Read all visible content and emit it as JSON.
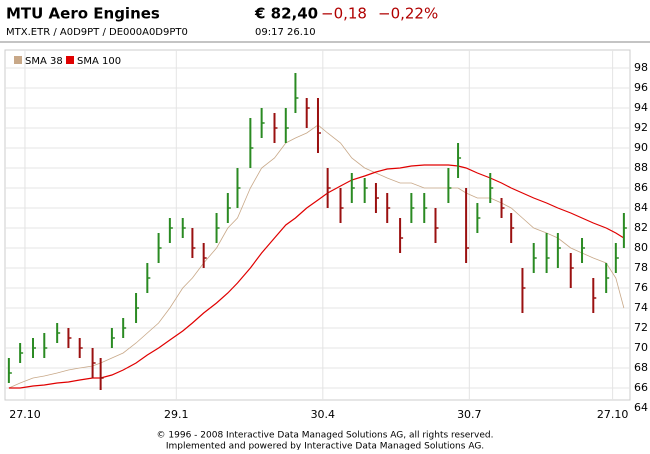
{
  "header": {
    "title": "MTU Aero Engines",
    "price": "€ 82,40",
    "change": "−0,18",
    "change_pct": "−0,22%",
    "ids": "MTX.ETR   /   A0D9PT   /   DE000A0D9PT0",
    "time": "09:17   26.10"
  },
  "chart_data": {
    "type": "ohlc",
    "x": [
      -10,
      -3,
      5,
      12,
      20,
      27,
      34,
      42,
      47,
      54,
      61,
      69,
      76,
      83,
      90,
      98,
      104,
      111,
      119,
      126,
      132,
      140,
      147,
      155,
      162,
      168,
      175,
      182,
      188,
      196,
      203,
      211,
      218,
      225,
      233,
      240,
      248,
      255,
      263,
      269,
      274,
      281,
      289,
      296,
      302,
      309,
      316,
      324,
      331,
      339,
      346,
      353,
      361,
      367,
      372
    ],
    "high": [
      69,
      70.5,
      71,
      71.5,
      72.5,
      72,
      71,
      70,
      69,
      72,
      73,
      75.5,
      78.5,
      81.5,
      83,
      83,
      82,
      80.5,
      83.5,
      85.5,
      88,
      93,
      94,
      93.5,
      94,
      97.5,
      95,
      95,
      88,
      86,
      87.5,
      87,
      86.5,
      85.5,
      83,
      85.5,
      85.5,
      84,
      88,
      90.5,
      86,
      84.5,
      87.5,
      85,
      83.5,
      78,
      80.5,
      81.5,
      81.5,
      79.5,
      81,
      77,
      78.5,
      80.5,
      83.5
    ],
    "low": [
      66.5,
      68.5,
      69,
      69,
      70.5,
      70,
      69,
      67,
      65.8,
      70,
      71,
      72.5,
      75.5,
      78.5,
      80.5,
      81,
      79,
      78,
      80.5,
      82.5,
      84,
      88,
      91,
      90.5,
      90.5,
      93.5,
      92,
      89.5,
      84,
      82.5,
      84.5,
      84.5,
      83.5,
      82.5,
      79.5,
      82.5,
      82.5,
      80.5,
      84.5,
      87,
      78.5,
      81.5,
      84.5,
      83,
      80.5,
      73.5,
      77.5,
      77.5,
      78,
      76,
      78.5,
      73.5,
      75.5,
      77.5,
      80
    ],
    "close": [
      67.5,
      69.5,
      70,
      70,
      71.5,
      71,
      70,
      68.5,
      67,
      71,
      72,
      74,
      77,
      80,
      82,
      82,
      80,
      79,
      82,
      84,
      86,
      90,
      92.5,
      92,
      92,
      95,
      94,
      91.5,
      86,
      84,
      86,
      86,
      85,
      84,
      81,
      84,
      84,
      82,
      86,
      89,
      80,
      83,
      86,
      84,
      82,
      76,
      79,
      79,
      80,
      78,
      80,
      75,
      77,
      79,
      82
    ],
    "up_color": "#2a8a22",
    "down_color": "#9a1010",
    "series": [
      {
        "name": "SMA 38",
        "color": "#c8a888",
        "values": [
          66,
          66.5,
          67,
          67.2,
          67.5,
          67.8,
          68,
          68.2,
          68.5,
          69,
          69.5,
          70.5,
          71.5,
          72.5,
          74,
          76,
          77,
          78.5,
          80,
          82,
          83,
          86,
          88,
          89,
          90.5,
          91,
          91.5,
          92.3,
          91.5,
          90.5,
          89,
          88,
          87.5,
          87,
          86.5,
          86.5,
          86,
          86,
          86,
          86,
          85.5,
          85,
          85,
          84.5,
          84,
          83,
          82,
          81.5,
          81,
          80,
          79.5,
          79,
          78.5,
          77,
          74
        ]
      },
      {
        "name": "SMA 100",
        "color": "#e00000",
        "values": [
          66,
          66,
          66.2,
          66.3,
          66.5,
          66.6,
          66.8,
          67,
          67,
          67.3,
          67.8,
          68.5,
          69.3,
          70,
          70.8,
          71.7,
          72.5,
          73.5,
          74.5,
          75.5,
          76.5,
          78,
          79.5,
          81,
          82.3,
          83,
          84,
          84.8,
          85.5,
          86.2,
          86.8,
          87.2,
          87.6,
          87.9,
          88,
          88.2,
          88.3,
          88.3,
          88.3,
          88.2,
          88,
          87.5,
          87,
          86.5,
          86,
          85.5,
          85,
          84.5,
          84,
          83.5,
          83,
          82.5,
          82,
          81.5,
          81
        ]
      }
    ],
    "xlim": [
      -12.4,
      375.8
    ],
    "xticks": [
      {
        "value": 0,
        "label": "27.10"
      },
      {
        "value": 94,
        "label": "29.1"
      },
      {
        "value": 185,
        "label": "30.4"
      },
      {
        "value": 276,
        "label": "30.7"
      },
      {
        "value": 365,
        "label": "27.10"
      }
    ],
    "ylim": [
      64,
      99.6
    ],
    "yticks": [
      64,
      66,
      68,
      70,
      72,
      74,
      76,
      78,
      80,
      82,
      84,
      86,
      88,
      90,
      92,
      94,
      96,
      98
    ],
    "grid": true
  },
  "footer": {
    "line1": "© 1996 - 2008 Interactive Data Managed Solutions AG, all rights reserved.",
    "line2": "Implemented and powered by Interactive Data Managed Solutions AG."
  }
}
